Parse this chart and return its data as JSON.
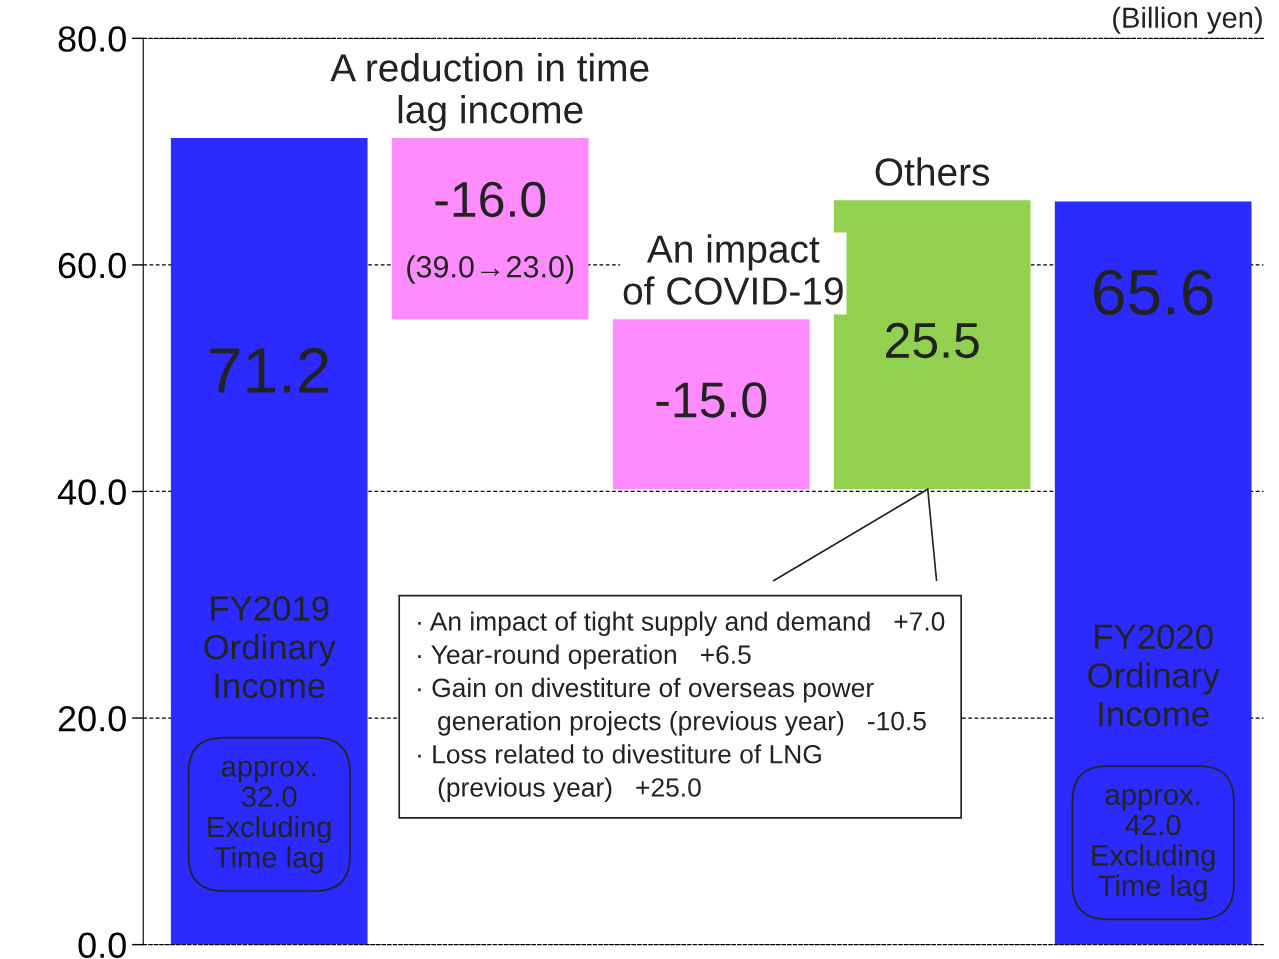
{
  "chart_data": {
    "type": "bar",
    "categories": [
      "FY2019\nOrdinary\nIncome",
      "A reduction in time\nlag income",
      "An impact\nof COVID-19",
      "Others",
      "FY2020\nOrdinary\nIncome"
    ],
    "values": [
      71.2,
      -16.0,
      -15.0,
      25.5,
      65.6
    ],
    "base": [
      0,
      71.2,
      55.2,
      40.2,
      0
    ],
    "colors": [
      "#2b2bff",
      "#ff8cff",
      "#ff8cff",
      "#92d050",
      "#2b2bff"
    ],
    "value_labels": [
      "71.2",
      "-16.0",
      "-15.0",
      "25.5",
      "65.6"
    ],
    "ylim": [
      0,
      80
    ],
    "yticks": [
      {
        "value": 0,
        "label": "0.0"
      },
      {
        "value": 20,
        "label": "20.0"
      },
      {
        "value": 40,
        "label": "40.0"
      },
      {
        "value": 60,
        "label": "60.0"
      },
      {
        "value": 80,
        "label": "80.0"
      }
    ],
    "grid": "y",
    "tick_labels": "y",
    "annotations": [
      "(Billion yen)",
      "(39.0→23.0)",
      "approx.\n32.0\nExcluding\nTime lag",
      "approx.\n42.0\nExcluding\nTime lag",
      "· An impact of tight supply and demand   +7.0\n· Year-round operation   +6.5\n· Gain on divestiture of overseas power\n   generation projects (previous year)   -10.5\n· Loss related to divestiture of LNG\n   (previous year)   +25.0"
    ]
  }
}
